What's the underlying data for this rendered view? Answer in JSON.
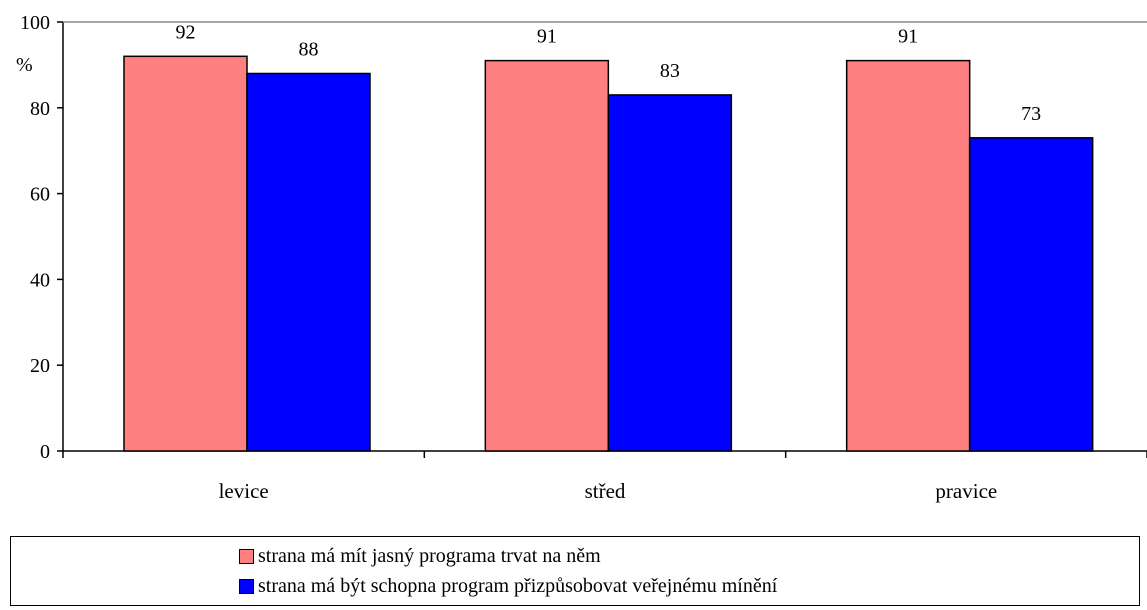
{
  "chart_data": {
    "type": "bar",
    "categories": [
      "levice",
      "střed",
      "pravice"
    ],
    "series": [
      {
        "name": "strana má mít jasný programa trvat na něm",
        "values": [
          92,
          91,
          91
        ],
        "color": "#FF8080"
      },
      {
        "name": "strana má být schopna program přizpůsobovat veřejnému mínění",
        "values": [
          88,
          83,
          73
        ],
        "color": "#0000FF"
      }
    ],
    "ylabel": "%",
    "ylim": [
      0,
      100
    ],
    "yticks": [
      0,
      20,
      40,
      60,
      80,
      100
    ],
    "grid": false,
    "legend_position": "bottom"
  }
}
